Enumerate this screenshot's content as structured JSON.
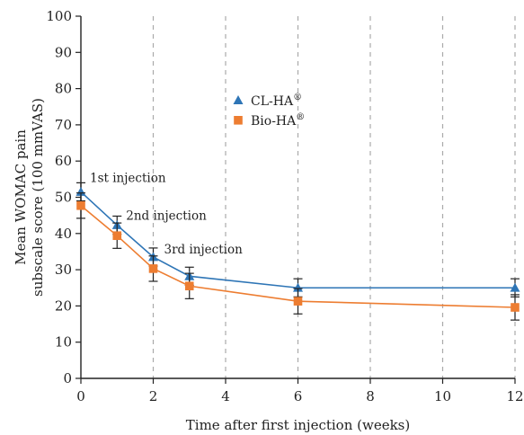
{
  "chart_data": {
    "type": "line",
    "xlabel": "Time after first injection (weeks)",
    "ylabel_lines": [
      "Mean WOMAC pain",
      "subscale score (100 mmVAS)"
    ],
    "xlim": [
      0,
      12
    ],
    "ylim": [
      0,
      100
    ],
    "x_ticks": [
      0,
      2,
      4,
      6,
      8,
      10,
      12
    ],
    "y_ticks": [
      0,
      10,
      20,
      30,
      40,
      50,
      60,
      70,
      80,
      90,
      100
    ],
    "vertical_gridlines": [
      2,
      4,
      6,
      8,
      10,
      12
    ],
    "legend_position": "center",
    "series": [
      {
        "name": "CL-HA",
        "name_sup": "®",
        "color": "#2e75b6",
        "marker": "triangle",
        "x": [
          0,
          1,
          2,
          3,
          6,
          12
        ],
        "y": [
          51.5,
          42.3,
          33.5,
          28.2,
          25.0,
          25.0
        ],
        "err": [
          2.5,
          2.5,
          2.5,
          2.5,
          2.5,
          2.5
        ]
      },
      {
        "name": "Bio-HA",
        "name_sup": "®",
        "color": "#ed7d31",
        "marker": "square",
        "x": [
          0,
          1,
          2,
          3,
          6,
          12
        ],
        "y": [
          47.7,
          39.4,
          30.3,
          25.5,
          21.3,
          19.6
        ],
        "err": [
          3.5,
          3.5,
          3.5,
          3.5,
          3.5,
          3.5
        ]
      }
    ],
    "annotations": [
      {
        "text": "1st injection",
        "x": 0,
        "y": 51.5
      },
      {
        "text": "2nd injection",
        "x": 1,
        "y": 42.3
      },
      {
        "text": "3rd injection",
        "x": 2,
        "y": 33.5
      }
    ]
  }
}
